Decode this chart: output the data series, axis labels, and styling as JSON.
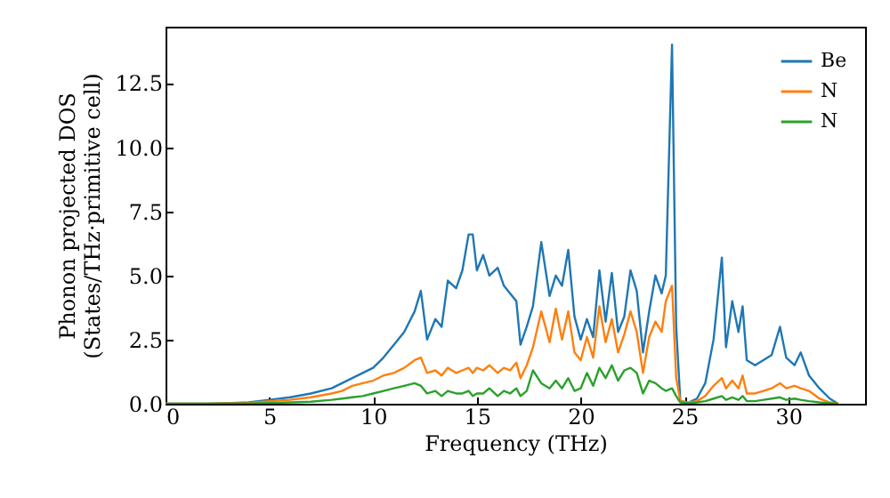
{
  "chart_data": {
    "type": "line",
    "xlabel": "Frequency (THz)",
    "ylabel": "Phonon projected DOS\n(States/THz·primitive cell)",
    "x": [
      0,
      2,
      4,
      5,
      6,
      7,
      8,
      8.5,
      9,
      9.5,
      10,
      10.5,
      11,
      11.5,
      12,
      12.3,
      12.6,
      13,
      13.3,
      13.6,
      14,
      14.3,
      14.6,
      14.8,
      15,
      15.3,
      15.6,
      16,
      16.3,
      16.6,
      16.9,
      17.1,
      17.4,
      17.7,
      18.1,
      18.5,
      18.8,
      19.1,
      19.4,
      19.7,
      20,
      20.3,
      20.6,
      20.9,
      21.2,
      21.5,
      21.8,
      22.1,
      22.4,
      22.7,
      23,
      23.3,
      23.6,
      23.9,
      24.1,
      24.4,
      24.6,
      24.8,
      25.2,
      25.6,
      26,
      26.4,
      26.8,
      27,
      27.3,
      27.6,
      27.8,
      28,
      28.4,
      28.8,
      29.2,
      29.6,
      29.9,
      30.3,
      30.6,
      31,
      31.5,
      32,
      32.4
    ],
    "series": [
      {
        "name": "Be",
        "color": "#1f77b4",
        "values": [
          0,
          0,
          0.05,
          0.15,
          0.25,
          0.4,
          0.6,
          0.8,
          1.0,
          1.2,
          1.4,
          1.8,
          2.3,
          2.8,
          3.6,
          4.4,
          2.5,
          3.3,
          3.0,
          4.8,
          4.5,
          5.2,
          6.6,
          6.6,
          5.2,
          5.8,
          5.0,
          5.3,
          4.6,
          4.3,
          4.0,
          2.3,
          3.0,
          3.8,
          6.3,
          4.2,
          5.0,
          4.6,
          6.0,
          3.4,
          2.5,
          3.3,
          2.6,
          5.2,
          3.2,
          5.1,
          2.8,
          3.4,
          5.2,
          4.4,
          2.0,
          3.6,
          5.0,
          4.3,
          5.0,
          14.0,
          3.0,
          0.1,
          0.05,
          0.2,
          0.8,
          2.5,
          5.7,
          2.2,
          4.0,
          2.8,
          3.8,
          1.7,
          1.5,
          1.7,
          1.9,
          3.0,
          1.8,
          1.5,
          2.0,
          1.1,
          0.6,
          0.2,
          0
        ]
      },
      {
        "name": "N",
        "color": "#ff7f0e",
        "values": [
          0,
          0,
          0.03,
          0.1,
          0.15,
          0.25,
          0.4,
          0.5,
          0.7,
          0.8,
          0.9,
          1.1,
          1.2,
          1.4,
          1.7,
          1.8,
          1.2,
          1.3,
          1.1,
          1.4,
          1.2,
          1.3,
          1.4,
          1.2,
          1.4,
          1.3,
          1.5,
          1.2,
          1.4,
          1.3,
          1.6,
          1.0,
          1.5,
          2.2,
          3.6,
          2.4,
          3.7,
          2.5,
          3.6,
          2.0,
          1.7,
          2.6,
          1.8,
          3.8,
          2.4,
          3.3,
          2.0,
          2.7,
          3.6,
          2.8,
          1.2,
          2.6,
          3.2,
          2.8,
          4.0,
          4.6,
          1.0,
          0.1,
          0.05,
          0.1,
          0.3,
          0.7,
          1.0,
          0.6,
          0.9,
          0.6,
          1.1,
          0.4,
          0.4,
          0.5,
          0.6,
          0.8,
          0.6,
          0.7,
          0.6,
          0.5,
          0.2,
          0.05,
          0
        ]
      },
      {
        "name": "N",
        "color": "#2ca02c",
        "values": [
          0,
          0,
          0.01,
          0.03,
          0.05,
          0.08,
          0.15,
          0.2,
          0.25,
          0.3,
          0.4,
          0.5,
          0.6,
          0.7,
          0.8,
          0.7,
          0.4,
          0.5,
          0.3,
          0.5,
          0.4,
          0.4,
          0.5,
          0.3,
          0.4,
          0.4,
          0.6,
          0.3,
          0.5,
          0.4,
          0.6,
          0.3,
          0.5,
          1.3,
          0.8,
          0.6,
          0.9,
          0.6,
          1.0,
          0.5,
          0.6,
          1.2,
          0.7,
          1.4,
          1.0,
          1.5,
          0.9,
          1.3,
          1.4,
          1.2,
          0.4,
          0.9,
          0.8,
          0.6,
          0.5,
          0.6,
          0.3,
          0.05,
          0.02,
          0.05,
          0.1,
          0.2,
          0.3,
          0.15,
          0.25,
          0.15,
          0.3,
          0.1,
          0.1,
          0.15,
          0.2,
          0.25,
          0.15,
          0.2,
          0.15,
          0.1,
          0.05,
          0.02,
          0
        ]
      }
    ],
    "xlim": [
      0,
      33.7
    ],
    "ylim": [
      0,
      14.7
    ],
    "xticks": [
      0,
      5,
      10,
      15,
      20,
      25,
      30
    ],
    "yticks": [
      {
        "value": 0,
        "label": "0.0"
      },
      {
        "value": 2.5,
        "label": "2.5"
      },
      {
        "value": 5,
        "label": "5.0"
      },
      {
        "value": 7.5,
        "label": "7.5"
      },
      {
        "value": 10,
        "label": "10.0"
      },
      {
        "value": 12.5,
        "label": "12.5"
      }
    ],
    "legend": "top right",
    "grid": false,
    "marker": "none",
    "line_style": "solid"
  }
}
